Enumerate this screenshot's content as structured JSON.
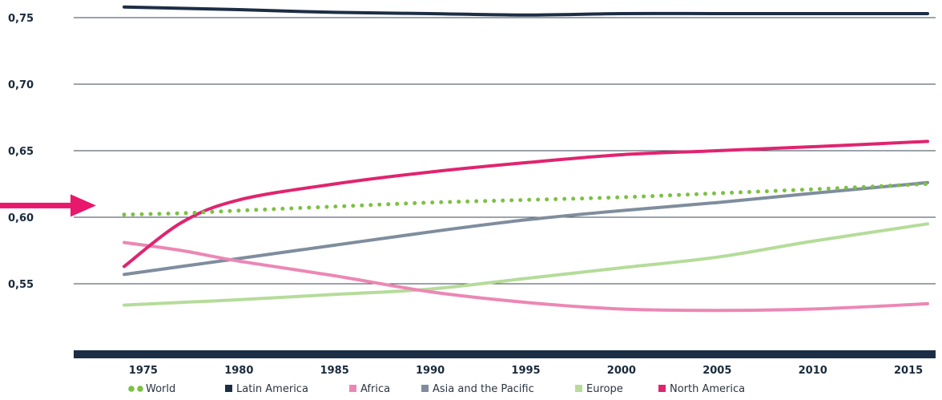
{
  "chart_data": {
    "type": "line",
    "title": "",
    "xlabel": "",
    "ylabel": "",
    "x": [
      1974,
      1977,
      1980,
      1985,
      1990,
      1995,
      2000,
      2005,
      2010,
      2016
    ],
    "xlim": [
      1974,
      2016
    ],
    "xticks": [
      "1975",
      "1980",
      "1985",
      "1990",
      "1995",
      "2000",
      "2005",
      "2010",
      "2015"
    ],
    "ylim": [
      0.5,
      0.76
    ],
    "yticks": [
      "0,75",
      "0,70",
      "0,65",
      "0,60",
      "0,55"
    ],
    "grid": true,
    "legend_position": "bottom",
    "series": [
      {
        "name": "World",
        "style": "dotted",
        "color": "#7cc142",
        "values": [
          0.602,
          0.603,
          0.605,
          0.608,
          0.611,
          0.613,
          0.615,
          0.618,
          0.621,
          0.625
        ]
      },
      {
        "name": "Latin America",
        "style": "solid",
        "color": "#1c2e45",
        "values": [
          0.758,
          0.757,
          0.756,
          0.754,
          0.753,
          0.752,
          0.753,
          0.753,
          0.753,
          0.753
        ]
      },
      {
        "name": "Africa",
        "style": "solid",
        "color": "#ec87b5",
        "values": [
          0.581,
          0.575,
          0.567,
          0.556,
          0.544,
          0.536,
          0.531,
          0.53,
          0.531,
          0.535
        ]
      },
      {
        "name": "Asia and the Pacific",
        "style": "solid",
        "color": "#7f8d9d",
        "values": [
          0.557,
          0.563,
          0.569,
          0.579,
          0.589,
          0.598,
          0.605,
          0.611,
          0.618,
          0.626
        ]
      },
      {
        "name": "Europe",
        "style": "solid",
        "color": "#b5dc9a",
        "values": [
          0.534,
          0.536,
          0.538,
          0.542,
          0.546,
          0.554,
          0.562,
          0.57,
          0.582,
          0.595
        ]
      },
      {
        "name": "North America",
        "style": "solid",
        "color": "#e0246f",
        "values": [
          0.563,
          0.596,
          0.613,
          0.625,
          0.634,
          0.641,
          0.647,
          0.65,
          0.653,
          0.657
        ]
      }
    ],
    "annotation_arrow": {
      "color": "#e8186d",
      "points_to_y": 0.61
    }
  }
}
